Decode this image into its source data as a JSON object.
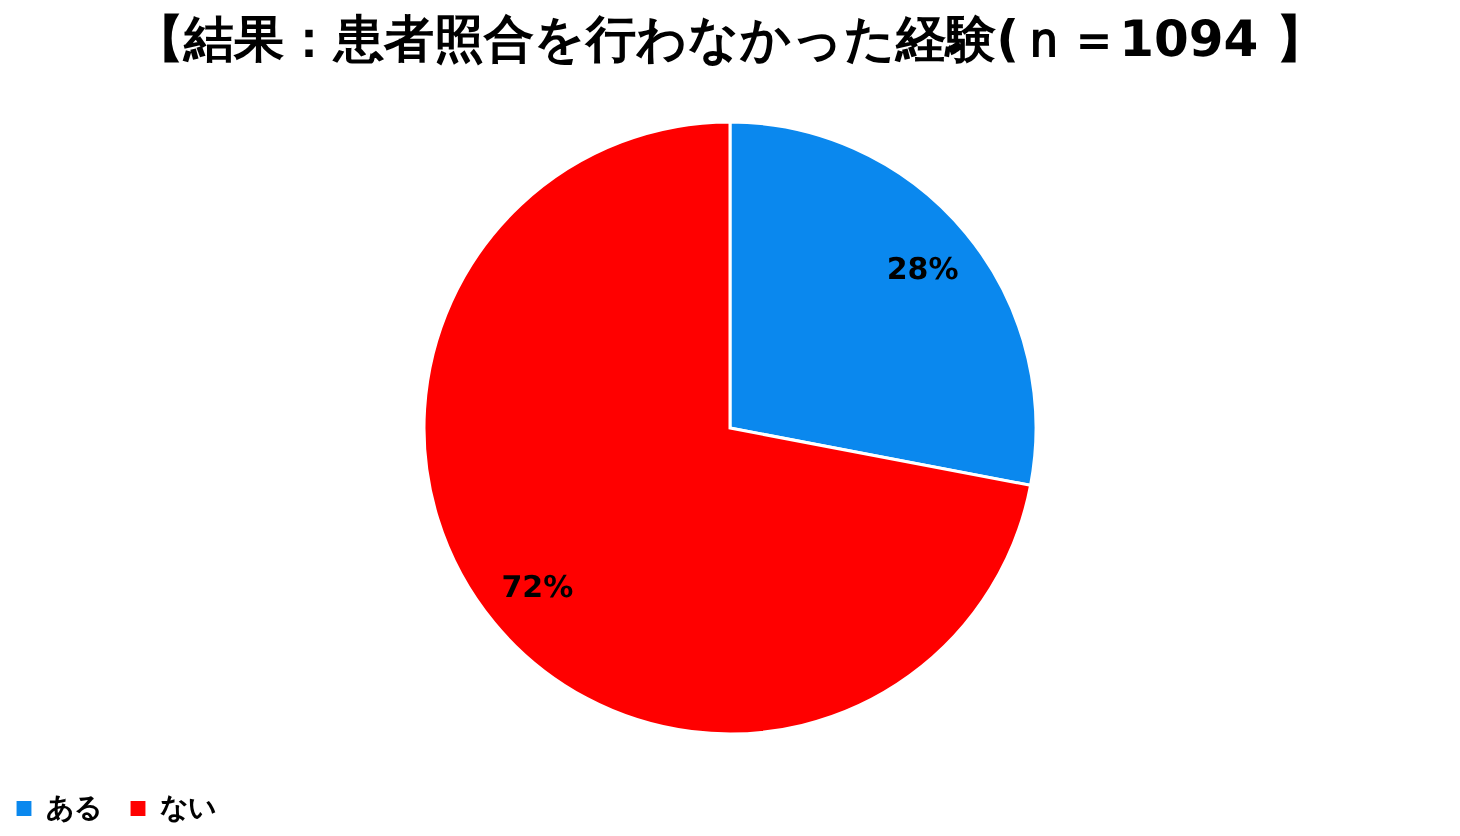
{
  "chart_data": {
    "type": "pie",
    "title": "【結果：患者照合を行わなかった経験(ｎ＝1094 】",
    "categories": [
      "ある",
      "ない"
    ],
    "values": [
      28,
      72
    ],
    "colors": [
      "#0a88ee",
      "#ff0000"
    ],
    "value_labels": [
      "28%",
      "72%"
    ],
    "legend": "bottom"
  }
}
